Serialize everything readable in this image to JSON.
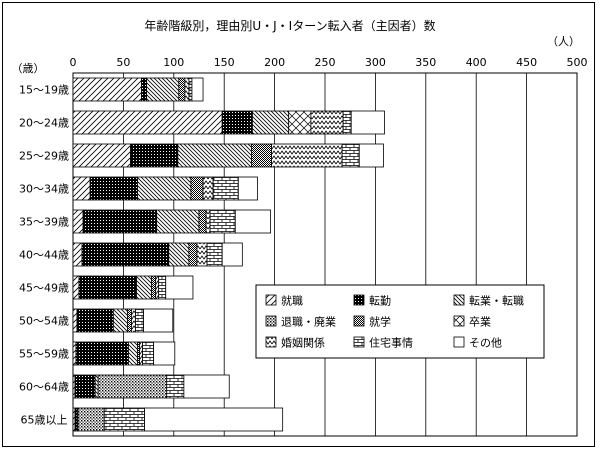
{
  "chart_data": {
    "type": "bar",
    "orientation": "horizontal",
    "stacked": true,
    "title": "年齢階級別，理由別U・J・Iターン転入者（主因者）数",
    "unit_label": "（人）",
    "category_axis_label": "（歳）",
    "xlim": [
      0,
      500
    ],
    "x_ticks": [
      "0",
      "50",
      "100",
      "150",
      "200",
      "250",
      "300",
      "350",
      "400",
      "450",
      "500"
    ],
    "grid": true,
    "legend_position": "bottom-right",
    "categories": [
      "15～19歳",
      "20～24歳",
      "25～29歳",
      "30～34歳",
      "35～39歳",
      "40～44歳",
      "45～49歳",
      "50～54歳",
      "55～59歳",
      "60～64歳",
      "65歳以上"
    ],
    "series": [
      {
        "name": "就職",
        "pattern": "diag-fwd",
        "values": [
          68,
          148,
          57,
          17,
          10,
          9,
          6,
          4,
          3,
          2,
          2
        ]
      },
      {
        "name": "転勤",
        "pattern": "dots-dense",
        "values": [
          5,
          30,
          47,
          47,
          73,
          86,
          57,
          36,
          52,
          20,
          2
        ]
      },
      {
        "name": "転業・転職",
        "pattern": "diag-back",
        "values": [
          32,
          36,
          73,
          53,
          42,
          20,
          15,
          14,
          9,
          3,
          1
        ]
      },
      {
        "name": "退職・廃業",
        "pattern": "dots-sparse",
        "values": [
          0,
          0,
          0,
          0,
          0,
          0,
          0,
          0,
          0,
          68,
          26
        ]
      },
      {
        "name": "就学",
        "pattern": "dots-medium",
        "values": [
          6,
          0,
          20,
          12,
          7,
          8,
          4,
          4,
          2,
          0,
          0
        ]
      },
      {
        "name": "卒業",
        "pattern": "cross",
        "values": [
          0,
          22,
          0,
          0,
          0,
          0,
          0,
          0,
          0,
          0,
          0
        ]
      },
      {
        "name": "婚姻関係",
        "pattern": "zigzag",
        "values": [
          4,
          32,
          70,
          10,
          4,
          10,
          3,
          4,
          3,
          0,
          0
        ]
      },
      {
        "name": "住宅事情",
        "pattern": "brick",
        "values": [
          3,
          8,
          17,
          25,
          25,
          15,
          7,
          8,
          11,
          17,
          40
        ]
      },
      {
        "name": "その他",
        "pattern": "white",
        "values": [
          11,
          33,
          24,
          19,
          35,
          20,
          27,
          29,
          21,
          45,
          137
        ]
      }
    ]
  }
}
